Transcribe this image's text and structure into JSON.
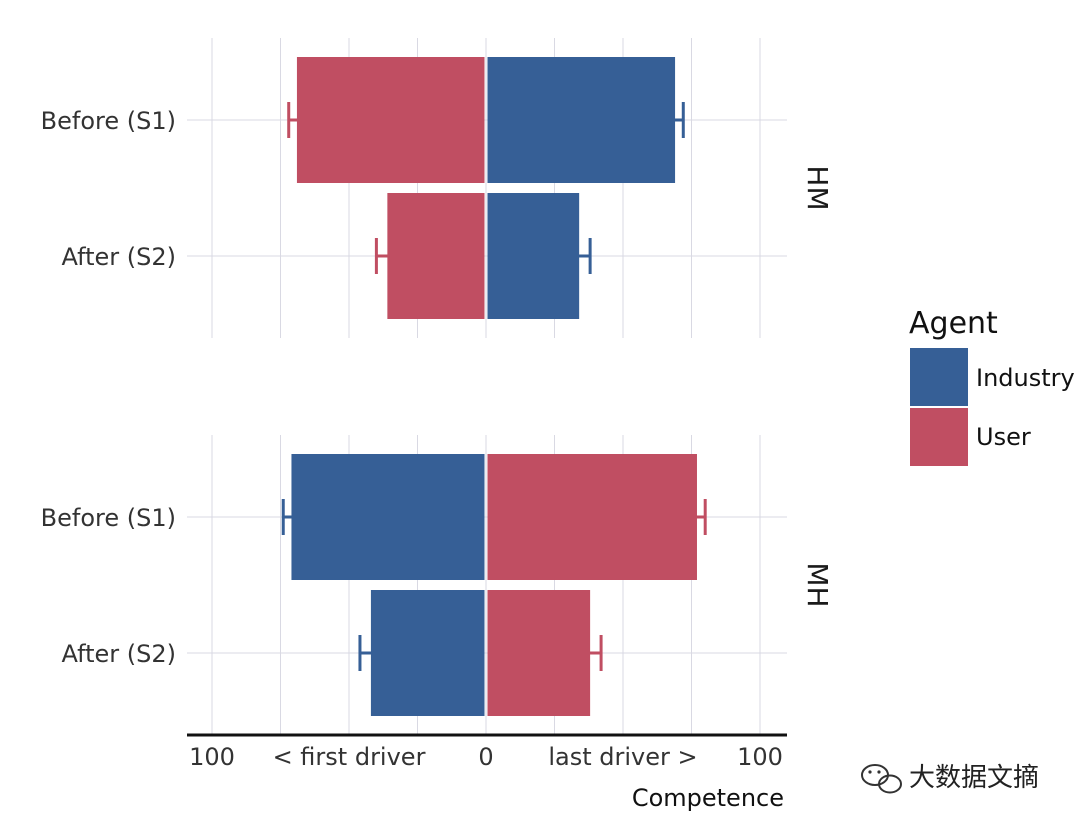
{
  "chart_data": {
    "type": "bar",
    "orientation": "horizontal-diverging",
    "x_title": "Competence",
    "x_tick_labels": [
      "100",
      "< first driver",
      "0",
      "last driver >",
      "100"
    ],
    "x_ticks": [
      -100,
      -50,
      0,
      50,
      100
    ],
    "xlim": [
      -110,
      110
    ],
    "legend": {
      "title": "Agent",
      "items": [
        {
          "name": "Industry",
          "color": "#365f96"
        },
        {
          "name": "User",
          "color": "#c04e62"
        }
      ],
      "placement": "right"
    },
    "facets": [
      {
        "label": "HM",
        "categories": [
          "Before (S1)",
          "After (S2)"
        ],
        "left_agent": "User",
        "right_agent": "Industry",
        "left_values": [
          69,
          36
        ],
        "right_values": [
          69,
          34
        ],
        "left_errors": [
          3,
          4
        ],
        "right_errors": [
          3,
          4
        ]
      },
      {
        "label": "MH",
        "categories": [
          "Before (S1)",
          "After (S2)"
        ],
        "left_agent": "Industry",
        "right_agent": "User",
        "left_values": [
          71,
          42
        ],
        "right_values": [
          77,
          38
        ],
        "left_errors": [
          3,
          4
        ],
        "right_errors": [
          3,
          4
        ]
      }
    ]
  },
  "watermark": "大数据文摘",
  "colors": {
    "Industry": "#365f96",
    "User": "#c04e62",
    "grid": "#d9d9e3",
    "axis": "#111111"
  }
}
